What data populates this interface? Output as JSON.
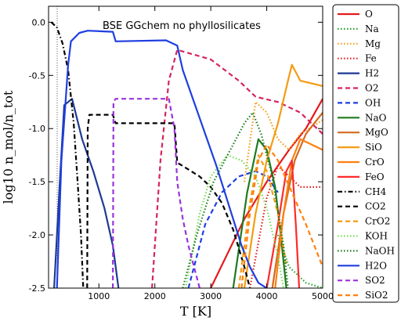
{
  "chart_data": {
    "type": "line",
    "title": "BSE GGchem no phyllosilicates",
    "xlabel": "T [K]",
    "ylabel": "log10 n_mol/n_tot",
    "xlim": [
      100,
      5000
    ],
    "ylim": [
      -2.5,
      0.15
    ],
    "xticks": [
      1000,
      2000,
      3000,
      4000,
      5000
    ],
    "yticks": [
      0.0,
      -0.5,
      -1.0,
      -1.5,
      -2.0,
      -2.5
    ],
    "grid": false,
    "legend": "right-outside",
    "series": [
      {
        "name": "O",
        "color": "#e41a1c",
        "dash": "solid",
        "points": [
          [
            3000,
            -2.5
          ],
          [
            3600,
            -1.85
          ],
          [
            4000,
            -1.5
          ],
          [
            4400,
            -1.2
          ],
          [
            4700,
            -1.0
          ],
          [
            5000,
            -0.72
          ]
        ]
      },
      {
        "name": "Na",
        "color": "#2ca02c",
        "dash": "dot",
        "points": [
          [
            4200,
            -2.0
          ],
          [
            4400,
            -2.3
          ],
          [
            4700,
            -2.45
          ],
          [
            5000,
            -2.5
          ]
        ]
      },
      {
        "name": "Mg",
        "color": "#f39c12",
        "dash": "dot",
        "points": [
          [
            3600,
            -1.5
          ],
          [
            3800,
            -0.75
          ],
          [
            4000,
            -0.85
          ],
          [
            4200,
            -1.1
          ],
          [
            4400,
            -1.2
          ],
          [
            4600,
            -1.05
          ],
          [
            5000,
            -0.92
          ]
        ]
      },
      {
        "name": "Fe",
        "color": "#e41a1c",
        "dash": "dot",
        "points": [
          [
            3700,
            -2.5
          ],
          [
            4000,
            -1.65
          ],
          [
            4200,
            -1.35
          ],
          [
            4400,
            -1.45
          ],
          [
            4600,
            -1.55
          ],
          [
            5000,
            -1.55
          ]
        ]
      },
      {
        "name": "H2",
        "color": "#1f3a93",
        "dash": "solid",
        "points": [
          [
            200,
            -2.5
          ],
          [
            290,
            -1.6
          ],
          [
            380,
            -0.78
          ],
          [
            450,
            -0.75
          ],
          [
            520,
            -0.72
          ],
          [
            700,
            -1.1
          ],
          [
            900,
            -1.4
          ],
          [
            1100,
            -1.75
          ],
          [
            1250,
            -2.1
          ],
          [
            1350,
            -2.5
          ]
        ]
      },
      {
        "name": "O2",
        "color": "#d6245d",
        "dash": "dash",
        "points": [
          [
            1950,
            -2.5
          ],
          [
            2100,
            -1.3
          ],
          [
            2250,
            -0.55
          ],
          [
            2400,
            -0.26
          ],
          [
            3000,
            -0.35
          ],
          [
            3500,
            -0.55
          ],
          [
            3800,
            -0.7
          ],
          [
            4200,
            -0.75
          ],
          [
            4600,
            -0.85
          ],
          [
            5000,
            -1.05
          ]
        ]
      },
      {
        "name": "OH",
        "color": "#1f3fe0",
        "dash": "dash",
        "points": [
          [
            2600,
            -2.5
          ],
          [
            2900,
            -1.9
          ],
          [
            3200,
            -1.6
          ],
          [
            3500,
            -1.45
          ],
          [
            3800,
            -1.4
          ],
          [
            4000,
            -1.45
          ],
          [
            4200,
            -1.6
          ]
        ]
      },
      {
        "name": "NaO",
        "color": "#1e7a1e",
        "dash": "solid",
        "points": [
          [
            3400,
            -2.5
          ],
          [
            3650,
            -1.6
          ],
          [
            3850,
            -1.1
          ],
          [
            4000,
            -1.2
          ],
          [
            4150,
            -1.55
          ],
          [
            4250,
            -2.0
          ],
          [
            4350,
            -2.5
          ]
        ]
      },
      {
        "name": "MgO",
        "color": "#d2691e",
        "dash": "solid",
        "points": [
          [
            4100,
            -2.5
          ],
          [
            4300,
            -1.8
          ],
          [
            4500,
            -1.3
          ],
          [
            4700,
            -1.05
          ],
          [
            5000,
            -0.85
          ]
        ]
      },
      {
        "name": "SiO",
        "color": "#f39c12",
        "dash": "solid",
        "points": [
          [
            3600,
            -2.5
          ],
          [
            3800,
            -1.8
          ],
          [
            4000,
            -1.3
          ],
          [
            4200,
            -0.95
          ],
          [
            4380,
            -0.55
          ],
          [
            4450,
            -0.4
          ],
          [
            4600,
            -0.55
          ],
          [
            5000,
            -0.6
          ]
        ]
      },
      {
        "name": "CrO",
        "color": "#ff7f0e",
        "dash": "solid",
        "points": [
          [
            4150,
            -2.5
          ],
          [
            4300,
            -1.8
          ],
          [
            4450,
            -1.3
          ],
          [
            4600,
            -1.1
          ],
          [
            5000,
            -1.2
          ]
        ]
      },
      {
        "name": "FeO",
        "color": "#ff2a2a",
        "dash": "solid",
        "points": [
          [
            4000,
            -2.5
          ],
          [
            4200,
            -1.9
          ],
          [
            4350,
            -1.4
          ],
          [
            4450,
            -1.3
          ],
          [
            4520,
            -1.9
          ],
          [
            4580,
            -2.5
          ]
        ]
      },
      {
        "name": "CH4",
        "color": "#000000",
        "dash": "dashdot",
        "points": [
          [
            150,
            0.0
          ],
          [
            250,
            -0.05
          ],
          [
            350,
            -0.2
          ],
          [
            450,
            -0.45
          ],
          [
            550,
            -0.95
          ],
          [
            620,
            -1.5
          ],
          [
            680,
            -2.0
          ],
          [
            720,
            -2.5
          ]
        ]
      },
      {
        "name": "CO2",
        "color": "#000000",
        "dash": "dash",
        "points": [
          [
            790,
            -2.5
          ],
          [
            800,
            -1.0
          ],
          [
            830,
            -0.87
          ],
          [
            1250,
            -0.87
          ],
          [
            1300,
            -0.95
          ],
          [
            2350,
            -0.95
          ],
          [
            2400,
            -1.32
          ],
          [
            2800,
            -1.45
          ],
          [
            3000,
            -1.55
          ],
          [
            3200,
            -1.7
          ],
          [
            3400,
            -1.95
          ],
          [
            3600,
            -2.3
          ],
          [
            3700,
            -2.5
          ]
        ]
      },
      {
        "name": "CrO2",
        "color": "#f39c12",
        "dash": "dash",
        "points": [
          [
            3500,
            -2.5
          ],
          [
            3700,
            -1.7
          ],
          [
            3850,
            -1.25
          ],
          [
            4000,
            -1.4
          ],
          [
            4200,
            -1.8
          ],
          [
            4350,
            -2.3
          ]
        ]
      },
      {
        "name": "KOH",
        "color": "#77dd55",
        "dash": "dot",
        "points": [
          [
            2550,
            -2.5
          ],
          [
            2800,
            -1.8
          ],
          [
            3000,
            -1.45
          ],
          [
            3300,
            -1.25
          ],
          [
            3550,
            -1.3
          ],
          [
            3800,
            -1.45
          ],
          [
            4000,
            -1.75
          ],
          [
            4200,
            -2.2
          ],
          [
            4300,
            -2.5
          ]
        ]
      },
      {
        "name": "NaOH",
        "color": "#1e7a1e",
        "dash": "dot",
        "points": [
          [
            2500,
            -2.5
          ],
          [
            2750,
            -2.0
          ],
          [
            3050,
            -1.5
          ],
          [
            3350,
            -1.2
          ],
          [
            3600,
            -0.95
          ],
          [
            3750,
            -0.85
          ],
          [
            3900,
            -1.05
          ],
          [
            4100,
            -1.45
          ],
          [
            4300,
            -2.1
          ],
          [
            4380,
            -2.5
          ]
        ]
      },
      {
        "name": "H2O",
        "color": "#1f3fe0",
        "dash": "solid",
        "points": [
          [
            250,
            -2.5
          ],
          [
            330,
            -1.3
          ],
          [
            400,
            -0.78
          ],
          [
            450,
            -0.4
          ],
          [
            500,
            -0.18
          ],
          [
            650,
            -0.1
          ],
          [
            800,
            -0.08
          ],
          [
            1250,
            -0.09
          ],
          [
            1300,
            -0.18
          ],
          [
            2200,
            -0.17
          ],
          [
            2400,
            -0.22
          ],
          [
            2500,
            -0.45
          ],
          [
            2700,
            -0.75
          ],
          [
            2900,
            -1.05
          ],
          [
            3100,
            -1.35
          ],
          [
            3250,
            -1.6
          ],
          [
            3400,
            -1.85
          ],
          [
            3550,
            -2.1
          ],
          [
            3700,
            -2.3
          ],
          [
            3850,
            -2.45
          ],
          [
            4000,
            -2.5
          ]
        ]
      },
      {
        "name": "SO2",
        "color": "#9933dd",
        "dash": "dash",
        "points": [
          [
            1250,
            -2.5
          ],
          [
            1260,
            -0.75
          ],
          [
            1300,
            -0.72
          ],
          [
            2250,
            -0.72
          ],
          [
            2350,
            -1.0
          ],
          [
            2400,
            -1.5
          ],
          [
            2500,
            -1.85
          ],
          [
            2600,
            -2.1
          ],
          [
            2700,
            -2.3
          ],
          [
            2800,
            -2.5
          ]
        ]
      },
      {
        "name": "SiO2",
        "color": "#ff7f0e",
        "dash": "dash",
        "points": [
          [
            3550,
            -2.5
          ],
          [
            3700,
            -1.8
          ],
          [
            3850,
            -1.3
          ],
          [
            4000,
            -1.15
          ],
          [
            4200,
            -1.3
          ],
          [
            4450,
            -1.6
          ],
          [
            4700,
            -1.9
          ],
          [
            5000,
            -2.3
          ]
        ]
      }
    ]
  }
}
